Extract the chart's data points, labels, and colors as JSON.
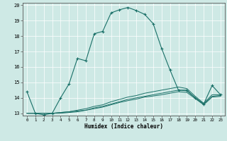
{
  "title": "",
  "xlabel": "Humidex (Indice chaleur)",
  "bg_color": "#cee9e5",
  "line_color": "#1a7068",
  "grid_color": "#ffffff",
  "xlim": [
    -0.5,
    23.5
  ],
  "ylim": [
    12.85,
    20.15
  ],
  "xticks": [
    0,
    1,
    2,
    3,
    4,
    5,
    6,
    7,
    8,
    9,
    10,
    11,
    12,
    13,
    14,
    15,
    16,
    17,
    18,
    19,
    20,
    21,
    22,
    23
  ],
  "yticks": [
    13,
    14,
    15,
    16,
    17,
    18,
    19,
    20
  ],
  "line1_x": [
    0,
    1,
    2,
    3,
    4,
    5,
    6,
    7,
    8,
    9,
    10,
    11,
    12,
    13,
    14,
    15,
    16,
    17,
    18,
    19,
    20,
    21,
    22,
    23
  ],
  "line1_y": [
    14.4,
    13.0,
    12.9,
    13.0,
    14.0,
    14.9,
    16.55,
    16.4,
    18.15,
    18.3,
    19.5,
    19.7,
    19.85,
    19.65,
    19.4,
    18.8,
    17.2,
    15.8,
    14.5,
    14.5,
    14.0,
    13.6,
    14.8,
    14.2
  ],
  "line2_x": [
    0,
    1,
    2,
    3,
    4,
    5,
    6,
    7,
    8,
    9,
    10,
    11,
    12,
    13,
    14,
    15,
    16,
    17,
    18,
    19,
    20,
    21,
    22,
    23
  ],
  "line2_y": [
    13.0,
    13.0,
    13.0,
    13.0,
    13.05,
    13.1,
    13.15,
    13.2,
    13.35,
    13.45,
    13.6,
    13.75,
    13.9,
    14.0,
    14.1,
    14.2,
    14.3,
    14.4,
    14.5,
    14.45,
    14.0,
    13.6,
    14.1,
    14.15
  ],
  "line3_x": [
    0,
    1,
    2,
    3,
    4,
    5,
    6,
    7,
    8,
    9,
    10,
    11,
    12,
    13,
    14,
    15,
    16,
    17,
    18,
    19,
    20,
    21,
    22,
    23
  ],
  "line3_y": [
    13.0,
    13.0,
    13.0,
    13.0,
    13.05,
    13.1,
    13.2,
    13.3,
    13.45,
    13.55,
    13.75,
    13.9,
    14.05,
    14.15,
    14.3,
    14.4,
    14.5,
    14.6,
    14.7,
    14.6,
    14.1,
    13.65,
    14.2,
    14.2
  ],
  "line4_x": [
    0,
    1,
    2,
    3,
    4,
    5,
    6,
    7,
    8,
    9,
    10,
    11,
    12,
    13,
    14,
    15,
    16,
    17,
    18,
    19,
    20,
    21,
    22,
    23
  ],
  "line4_y": [
    13.0,
    13.0,
    13.0,
    13.0,
    13.0,
    13.05,
    13.1,
    13.2,
    13.3,
    13.4,
    13.55,
    13.7,
    13.82,
    13.92,
    14.05,
    14.12,
    14.2,
    14.3,
    14.4,
    14.35,
    13.95,
    13.55,
    14.05,
    14.1
  ]
}
